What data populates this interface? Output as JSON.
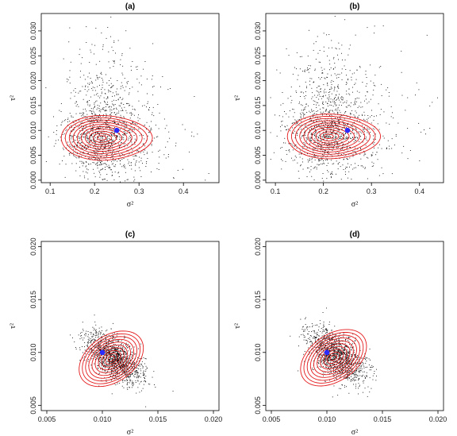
{
  "chart_data": [
    {
      "type": "scatter",
      "title": "(a)",
      "xlabel": "σ²",
      "ylabel": "τ²",
      "xlim": [
        0.08,
        0.48
      ],
      "ylim": [
        -0.0005,
        0.0335
      ],
      "xticks": [
        "0.1",
        "0.2",
        "0.3",
        "0.4"
      ],
      "yticks": [
        "0.000",
        "0.005",
        "0.010",
        "0.015",
        "0.020",
        "0.025",
        "0.030"
      ],
      "point_color": "#000000",
      "contour_color": "#e41a1c",
      "marker_color": "#2b2bff",
      "cloud": {
        "x_mean": 0.22,
        "x_sd": 0.045,
        "y_mean": 0.0095,
        "y_sd": 0.0045,
        "n": 1400,
        "corr": 0.0
      },
      "contours": {
        "x_center": 0.215,
        "y_center": 0.0085,
        "x_half_width": 0.09,
        "y_half_height": 0.0045,
        "levels": 10,
        "tilt": 0.0
      },
      "true_value": {
        "x": 0.25,
        "y": 0.01
      }
    },
    {
      "type": "scatter",
      "title": "(b)",
      "xlabel": "σ²",
      "ylabel": "τ²",
      "xlim": [
        0.08,
        0.45
      ],
      "ylim": [
        -0.0005,
        0.0335
      ],
      "xticks": [
        "0.1",
        "0.2",
        "0.3",
        "0.4"
      ],
      "yticks": [
        "0.000",
        "0.005",
        "0.010",
        "0.015",
        "0.020",
        "0.025",
        "0.030"
      ],
      "point_color": "#000000",
      "contour_color": "#e41a1c",
      "marker_color": "#2b2bff",
      "cloud": {
        "x_mean": 0.21,
        "x_sd": 0.045,
        "y_mean": 0.0105,
        "y_sd": 0.0048,
        "n": 1400,
        "corr": 0.0
      },
      "contours": {
        "x_center": 0.21,
        "y_center": 0.0088,
        "x_half_width": 0.085,
        "y_half_height": 0.0045,
        "levels": 10,
        "tilt": 0.0
      },
      "true_value": {
        "x": 0.25,
        "y": 0.01
      }
    },
    {
      "type": "scatter",
      "title": "(c)",
      "xlabel": "σ²",
      "ylabel": "τ²",
      "xlim": [
        0.0045,
        0.0205
      ],
      "ylim": [
        0.0045,
        0.0205
      ],
      "xticks": [
        "0.005",
        "0.010",
        "0.015",
        "0.020"
      ],
      "yticks": [
        "0.005",
        "0.010",
        "0.015",
        "0.020"
      ],
      "point_color": "#000000",
      "contour_color": "#e41a1c",
      "marker_color": "#2b2bff",
      "cloud": {
        "x_mean": 0.011,
        "x_sd": 0.0013,
        "y_mean": 0.0095,
        "y_sd": 0.0012,
        "n": 1400,
        "corr": -0.55
      },
      "contours": {
        "x_center": 0.0108,
        "y_center": 0.0094,
        "x_half_width": 0.0032,
        "y_half_height": 0.0022,
        "levels": 10,
        "tilt": -0.6
      },
      "true_value": {
        "x": 0.01,
        "y": 0.01
      }
    },
    {
      "type": "scatter",
      "title": "(d)",
      "xlabel": "σ²",
      "ylabel": "τ²",
      "xlim": [
        0.0045,
        0.0205
      ],
      "ylim": [
        0.0045,
        0.0205
      ],
      "xticks": [
        "0.005",
        "0.010",
        "0.015",
        "0.020"
      ],
      "yticks": [
        "0.005",
        "0.010",
        "0.015",
        "0.020"
      ],
      "point_color": "#000000",
      "contour_color": "#e41a1c",
      "marker_color": "#2b2bff",
      "cloud": {
        "x_mean": 0.0108,
        "x_sd": 0.0013,
        "y_mean": 0.0097,
        "y_sd": 0.0013,
        "n": 1400,
        "corr": -0.55
      },
      "contours": {
        "x_center": 0.0106,
        "y_center": 0.0095,
        "x_half_width": 0.0033,
        "y_half_height": 0.0022,
        "levels": 10,
        "tilt": -0.6
      },
      "true_value": {
        "x": 0.01,
        "y": 0.01
      }
    }
  ]
}
